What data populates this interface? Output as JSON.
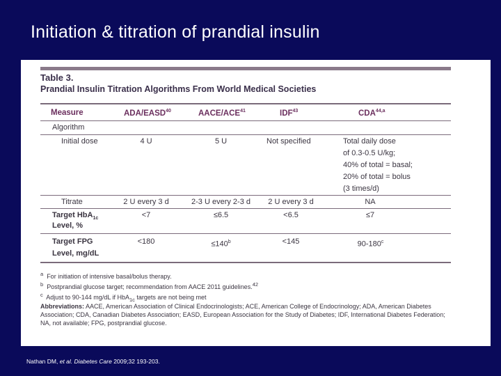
{
  "slide": {
    "title": "Initiation & titration of prandial insulin",
    "dots": "..",
    "citation_pre": "Nathan DM, ",
    "citation_italic": "et al. Diabetes Care",
    "citation_post": " 2009;32 193-203."
  },
  "table": {
    "number": "Table 3.",
    "caption": "Prandial Insulin Titration Algorithms From World Medical Societies",
    "headers": {
      "measure": "Measure",
      "ada": "ADA/EASD",
      "ada_sup": "40",
      "aace": "AACE/ACE",
      "aace_sup": "41",
      "idf": "IDF",
      "idf_sup": "43",
      "cda": "CDA",
      "cda_sup": "44,a"
    },
    "algorithm_label": "Algorithm",
    "initial_dose": {
      "label": "Initial dose",
      "ada": "4 U",
      "aace": "5 U",
      "idf": "Not specified",
      "cda_lines": [
        "Total daily dose",
        "of 0.3-0.5 U/kg;",
        "40% of total = basal;",
        "20% of total = bolus",
        "(3 times/d)"
      ]
    },
    "titrate": {
      "label": "Titrate",
      "ada": "2 U every 3 d",
      "aace": "2-3 U every 2-3 d",
      "idf": "2 U every 3 d",
      "cda": "NA"
    },
    "hba1c": {
      "label_line1": "Target HbA",
      "label_sub": "1c",
      "label_line2": "Level, %",
      "ada": "<7",
      "aace": "≤6.5",
      "idf": "<6.5",
      "cda": "≤7"
    },
    "fpg": {
      "label_line1": "Target FPG",
      "label_line2": "Level, mg/dL",
      "ada": "<180",
      "aace": "≤140",
      "aace_sup": "b",
      "idf": "<145",
      "cda": "90-180",
      "cda_sup": "c"
    },
    "footnotes": [
      {
        "mark": "a",
        "text": "For initiation of intensive basal/bolus therapy."
      },
      {
        "mark": "b",
        "text": "Postprandial glucose target; recommendation from AACE 2011 guidelines.",
        "sup": "42"
      },
      {
        "mark": "c",
        "text": "Adjust to 90-144 mg/dL if HbA",
        "sub": "1c",
        "text2": " targets are not being met"
      }
    ],
    "abbreviation_label": "Abbreviations:",
    "abbreviation_text": " AACE, American Association of Clinical Endocrinologists; ACE, American College of Endocrinology; ADA, American Diabetes Association; CDA, Canadian Diabetes Association; EASD, European Association for the Study of Diabetes; IDF, International Diabetes Federation; NA, not available; FPG, postprandial glucose."
  }
}
